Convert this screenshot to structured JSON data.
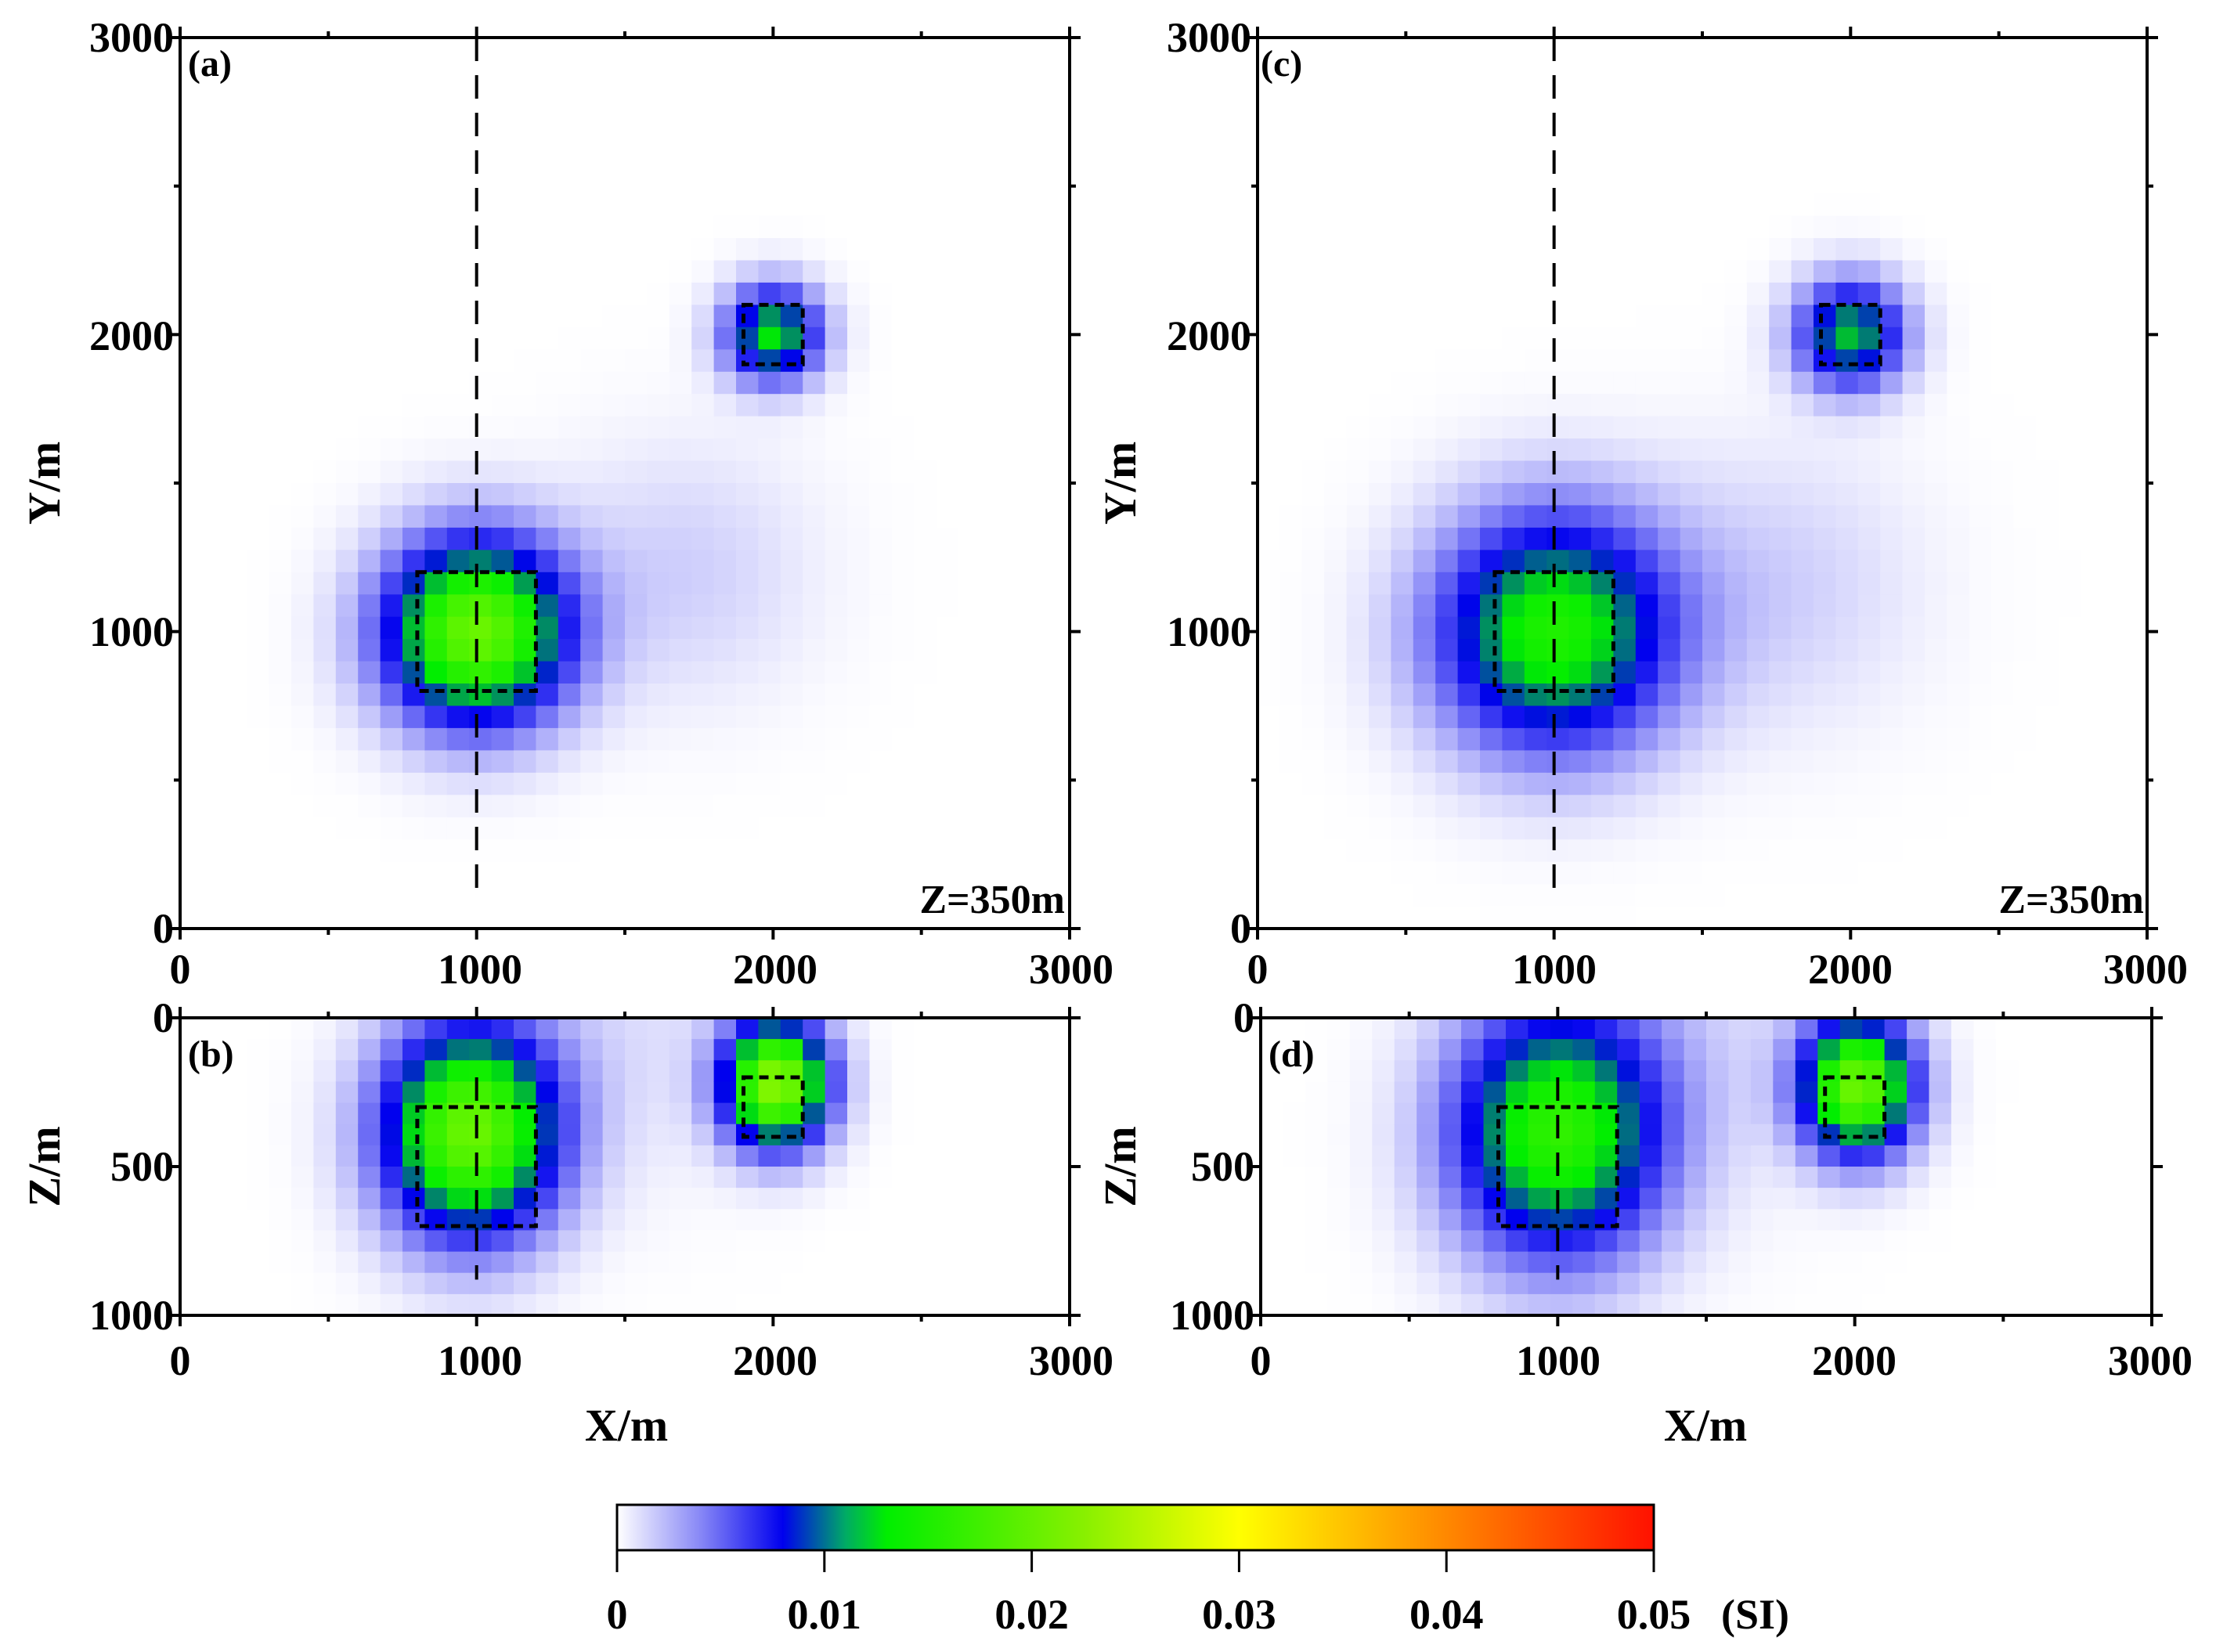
{
  "chart_data": [
    {
      "type": "heatmap",
      "panel_label": "(a)",
      "view": "plan",
      "annotation": "Z=350m",
      "xlabel": "",
      "ylabel": "Y/m",
      "xlim": [
        0,
        3000
      ],
      "ylim": [
        0,
        3000
      ],
      "xticks": [
        "0",
        "1000",
        "2000",
        "3000"
      ],
      "yticks": [
        "0",
        "1000",
        "2000",
        "3000"
      ],
      "profile_line_x": 1000,
      "true_bodies": [
        {
          "x": [
            800,
            1200
          ],
          "y": [
            800,
            1200
          ]
        },
        {
          "x": [
            1900,
            2100
          ],
          "y": [
            1900,
            2100
          ]
        }
      ],
      "anomalies": [
        {
          "x": 1000,
          "y": 1000,
          "peak": 0.02,
          "spread": 210
        },
        {
          "x": 2000,
          "y": 2000,
          "peak": 0.013,
          "spread": 110
        },
        {
          "x": 1700,
          "y": 1200,
          "peak": 0.0015,
          "spread": 300
        }
      ]
    },
    {
      "type": "heatmap",
      "panel_label": "(b)",
      "view": "section",
      "xlabel": "X/m",
      "ylabel": "Z/m",
      "xlim": [
        0,
        3000
      ],
      "ylim": [
        1000,
        0
      ],
      "xticks": [
        "0",
        "1000",
        "2000",
        "3000"
      ],
      "yticks": [
        "0",
        "500",
        "1000"
      ],
      "profile_line_x": 1000,
      "true_bodies": [
        {
          "x": [
            800,
            1200
          ],
          "z": [
            300,
            700
          ]
        },
        {
          "x": [
            1900,
            2100
          ],
          "z": [
            200,
            400
          ]
        }
      ],
      "anomalies": [
        {
          "x": 980,
          "z": 380,
          "peak": 0.02,
          "spread": 200
        },
        {
          "x": 2010,
          "z": 220,
          "peak": 0.022,
          "spread": 120
        },
        {
          "x": 1500,
          "z": 40,
          "peak": 0.001,
          "spread": 300
        }
      ]
    },
    {
      "type": "heatmap",
      "panel_label": "(c)",
      "view": "plan",
      "annotation": "Z=350m",
      "xlabel": "",
      "ylabel": "Y/m",
      "xlim": [
        0,
        3000
      ],
      "ylim": [
        0,
        3000
      ],
      "xticks": [
        "0",
        "1000",
        "2000",
        "3000"
      ],
      "yticks": [
        "0",
        "1000",
        "2000",
        "3000"
      ],
      "profile_line_x": 1000,
      "true_bodies": [
        {
          "x": [
            800,
            1200
          ],
          "y": [
            800,
            1200
          ]
        },
        {
          "x": [
            1900,
            2100
          ],
          "y": [
            1900,
            2100
          ]
        }
      ],
      "anomalies": [
        {
          "x": 1000,
          "y": 1000,
          "peak": 0.015,
          "spread": 270
        },
        {
          "x": 2000,
          "y": 2000,
          "peak": 0.012,
          "spread": 125
        },
        {
          "x": 1750,
          "y": 1150,
          "peak": 0.0015,
          "spread": 330
        }
      ]
    },
    {
      "type": "heatmap",
      "panel_label": "(d)",
      "view": "section",
      "xlabel": "X/m",
      "ylabel": "Z/m",
      "xlim": [
        0,
        3000
      ],
      "ylim": [
        1000,
        0
      ],
      "xticks": [
        "0",
        "1000",
        "2000",
        "3000"
      ],
      "yticks": [
        "0",
        "500",
        "1000"
      ],
      "profile_line_x": 1000,
      "true_bodies": [
        {
          "x": [
            800,
            1200
          ],
          "z": [
            300,
            700
          ]
        },
        {
          "x": [
            1900,
            2100
          ],
          "z": [
            200,
            400
          ]
        }
      ],
      "anomalies": [
        {
          "x": 1000,
          "z": 380,
          "peak": 0.016,
          "spread": 240
        },
        {
          "x": 2010,
          "z": 230,
          "peak": 0.02,
          "spread": 130
        },
        {
          "x": 1500,
          "z": 40,
          "peak": 0.001,
          "spread": 320
        }
      ]
    }
  ],
  "colorbar": {
    "range": [
      0,
      0.05
    ],
    "ticks": [
      "0",
      "0.01",
      "0.02",
      "0.03",
      "0.04",
      "0.05"
    ],
    "unit": "(SI)",
    "colormap": [
      [
        0,
        "#ffffff"
      ],
      [
        0.008,
        "#0000ee"
      ],
      [
        0.013,
        "#00ee00"
      ],
      [
        0.03,
        "#ffff00"
      ],
      [
        0.04,
        "#ff8800"
      ],
      [
        0.05,
        "#ff1100"
      ]
    ]
  }
}
